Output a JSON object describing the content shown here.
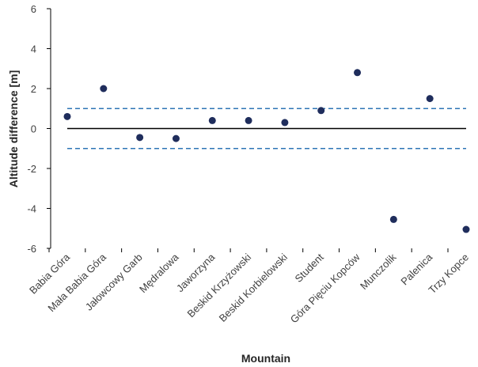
{
  "chart_data": {
    "type": "scatter",
    "title": "",
    "xlabel": "Mountain",
    "ylabel": "Altitude difference [m]",
    "ylim": [
      -6,
      6
    ],
    "yticks": [
      -6,
      -4,
      -2,
      0,
      2,
      4,
      6
    ],
    "ytick_labels": [
      "-6",
      "-4",
      "-2",
      "0",
      "2",
      "4",
      "6"
    ],
    "grid": false,
    "legend": "none",
    "categories": [
      "Babia Góra",
      "Mała Babia Góra",
      "Jałowcowy Garb",
      "Mędralowa",
      "Jaworzyna",
      "Beskid Krzyżowski",
      "Beskid Korbielowski",
      "Student",
      "Góra Pięciu Kopców",
      "Munczolik",
      "Palenica",
      "Trzy Kopce"
    ],
    "series": [
      {
        "values": [
          0.6,
          2.0,
          -0.45,
          -0.5,
          0.4,
          0.4,
          0.3,
          0.9,
          2.8,
          -4.55,
          1.5,
          -5.05
        ]
      }
    ],
    "reference_lines": [
      {
        "y": 0,
        "style": "solid",
        "color": "#000000"
      },
      {
        "y": 1,
        "style": "dashed",
        "color": "#2e75b6"
      },
      {
        "y": -1,
        "style": "dashed",
        "color": "#2e75b6"
      }
    ],
    "colors": {
      "marker": "#1f2d5c",
      "axis": "#000000"
    }
  }
}
